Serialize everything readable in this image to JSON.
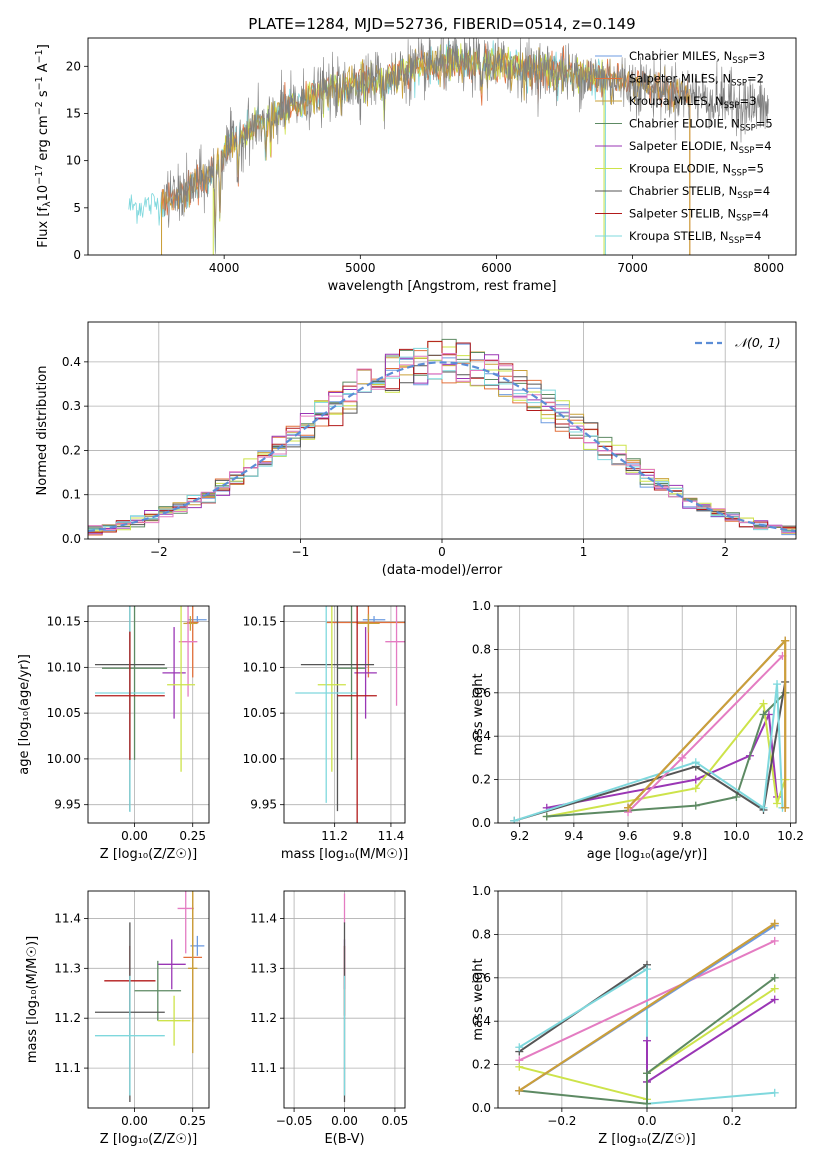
{
  "figure_title": "PLATE=1284, MJD=52736, FIBERID=0514, z=0.149",
  "colors": {
    "Chabrier MILES": "#6d9be0",
    "Salpeter MILES": "#e2703c",
    "Kroupa MILES": "#c9a13a",
    "Chabrier ELODIE": "#5d8a63",
    "Salpeter ELODIE": "#9a36b5",
    "Kroupa ELODIE": "#cde34a",
    "Chabrier STELIB": "#555555",
    "Salpeter STELIB": "#b21a1a",
    "Kroupa STELIB": "#7fd8dd",
    "Pink": "#e47cc2",
    "Data": "#808080",
    "Grid": "#b0b0b0",
    "Normal": "#5b8dd6"
  },
  "chart_data": [
    {
      "id": "spectrum",
      "type": "line",
      "title": "PLATE=1284, MJD=52736, FIBERID=0514, z=0.149",
      "xlabel": "wavelength [Angstrom, rest frame]",
      "ylabel_parts": [
        "Flux [f",
        "λ",
        "10",
        "−17",
        " erg cm",
        "−2",
        " s",
        "−1",
        " A",
        "−1",
        "]"
      ],
      "xlim": [
        3000,
        8200
      ],
      "ylim": [
        0,
        23
      ],
      "xticks": [
        4000,
        5000,
        6000,
        7000,
        8000
      ],
      "yticks": [
        0,
        5,
        10,
        15,
        20
      ],
      "grid": false,
      "legend_position": "upper right",
      "legend": [
        {
          "name": "Chabrier MILES",
          "nssp": "3",
          "color_key": "Chabrier MILES"
        },
        {
          "name": "Salpeter MILES",
          "nssp": "2",
          "color_key": "Salpeter MILES"
        },
        {
          "name": "Kroupa MILES",
          "nssp": "3",
          "color_key": "Kroupa MILES"
        },
        {
          "name": "Chabrier ELODIE",
          "nssp": "5",
          "color_key": "Chabrier ELODIE"
        },
        {
          "name": "Salpeter ELODIE",
          "nssp": "4",
          "color_key": "Salpeter ELODIE"
        },
        {
          "name": "Kroupa ELODIE",
          "nssp": "5",
          "color_key": "Kroupa ELODIE"
        },
        {
          "name": "Chabrier STELIB",
          "nssp": "4",
          "color_key": "Chabrier STELIB"
        },
        {
          "name": "Salpeter STELIB",
          "nssp": "4",
          "color_key": "Salpeter STELIB"
        },
        {
          "name": "Kroupa STELIB",
          "nssp": "4",
          "color_key": "Kroupa STELIB"
        }
      ],
      "continuum": [
        [
          3300,
          5.1
        ],
        [
          3500,
          5.4
        ],
        [
          3700,
          6.5
        ],
        [
          3900,
          8.5
        ],
        [
          4000,
          11
        ],
        [
          4200,
          13.5
        ],
        [
          4400,
          15
        ],
        [
          4600,
          16.5
        ],
        [
          4800,
          17.6
        ],
        [
          5000,
          18.3
        ],
        [
          5200,
          19
        ],
        [
          5400,
          19.8
        ],
        [
          5600,
          20.2
        ],
        [
          5800,
          20.3
        ],
        [
          6000,
          20.2
        ],
        [
          6200,
          19.8
        ],
        [
          6400,
          19.5
        ],
        [
          6600,
          19.1
        ],
        [
          6800,
          18.7
        ],
        [
          7000,
          18.2
        ],
        [
          7200,
          17.6
        ],
        [
          7400,
          17
        ],
        [
          7600,
          16.5
        ],
        [
          7800,
          16
        ],
        [
          8000,
          15.5
        ]
      ],
      "absorption_lines": [
        [
          3934,
          8
        ],
        [
          3969,
          7
        ],
        [
          4102,
          4
        ],
        [
          4304,
          3.5
        ],
        [
          4341,
          3
        ],
        [
          4861,
          2.5
        ],
        [
          5175,
          3.5
        ],
        [
          5270,
          2
        ],
        [
          5890,
          3
        ],
        [
          6563,
          1.5
        ],
        [
          7600,
          1.5
        ]
      ],
      "model_ranges": [
        {
          "color_key": "Kroupa STELIB",
          "x": [
            3300,
            6800
          ]
        },
        {
          "color_key": "Salpeter MILES",
          "x": [
            3540,
            7420
          ]
        },
        {
          "color_key": "Kroupa ELODIE",
          "x": [
            3920,
            6790
          ]
        },
        {
          "color_key": "Kroupa MILES",
          "x": [
            3540,
            7420
          ]
        }
      ],
      "data_range": [
        3560,
        8000
      ]
    },
    {
      "id": "residuals",
      "type": "step",
      "xlabel": "(data-model)/error",
      "ylabel": "Normed distribution",
      "xlim": [
        -2.5,
        2.5
      ],
      "ylim": [
        0,
        0.49
      ],
      "xticks": [
        -2,
        -1,
        0,
        1,
        2
      ],
      "xtick_labels": [
        "−2",
        "−1",
        "0",
        "1",
        "2"
      ],
      "yticks": [
        0,
        0.1,
        0.2,
        0.3,
        0.4
      ],
      "ytick_labels": [
        "0.0",
        "0.1",
        "0.2",
        "0.3",
        "0.4"
      ],
      "grid": true,
      "legend_position": "upper right",
      "legend_label": "𝒩(0, 1)",
      "normal": {
        "mean": 0,
        "sigma": 1
      },
      "bin_width": 0.1,
      "series_color_keys": [
        "Chabrier MILES",
        "Salpeter MILES",
        "Kroupa MILES",
        "Chabrier ELODIE",
        "Salpeter ELODIE",
        "Kroupa ELODIE",
        "Chabrier STELIB",
        "Salpeter STELIB",
        "Kroupa STELIB",
        "Pink"
      ]
    },
    {
      "id": "age-vs-Z",
      "type": "errorbar",
      "xlabel": "Z [log₁₀(Z/Z☉)]",
      "ylabel": "age  [log₁₀(age/yr)]",
      "xlim": [
        -0.2,
        0.32
      ],
      "ylim": [
        9.93,
        10.167
      ],
      "xticks": [
        0,
        0.25
      ],
      "xtick_labels": [
        "0.00",
        "0.25"
      ],
      "yticks": [
        9.95,
        10.0,
        10.05,
        10.1,
        10.15
      ],
      "ytick_labels": [
        "9.95",
        "10.00",
        "10.05",
        "10.10",
        "10.15"
      ],
      "grid": true,
      "points": [
        {
          "color_key": "Chabrier MILES",
          "x": 0.27,
          "y": 10.152,
          "xerr": 0.04,
          "yerr": 0.004
        },
        {
          "color_key": "Salpeter MILES",
          "x": 0.25,
          "y": 10.149,
          "xerr": 0.025,
          "yerr": 0.06
        },
        {
          "color_key": "Kroupa MILES",
          "x": 0.24,
          "y": 10.148,
          "xerr": 0.03,
          "yerr": 0.008
        },
        {
          "color_key": "Pink",
          "x": 0.23,
          "y": 10.128,
          "xerr": 0.04,
          "yerr": 0.06
        },
        {
          "color_key": "Salpeter ELODIE",
          "x": 0.17,
          "y": 10.094,
          "xerr": 0.05,
          "yerr": 0.05
        },
        {
          "color_key": "Chabrier ELODIE",
          "x": 0.0,
          "y": 10.099,
          "xerr": 0.14,
          "yerr": 0.1
        },
        {
          "color_key": "Chabrier STELIB",
          "x": -0.02,
          "y": 10.103,
          "xerr": 0.15,
          "yerr": 0.16
        },
        {
          "color_key": "Kroupa ELODIE",
          "x": 0.2,
          "y": 10.081,
          "xerr": 0.06,
          "yerr": 0.095
        },
        {
          "color_key": "Kroupa STELIB",
          "x": -0.02,
          "y": 10.072,
          "xerr": 0.15,
          "yerr": 0.13
        },
        {
          "color_key": "Salpeter STELIB",
          "x": -0.02,
          "y": 10.069,
          "xerr": 0.15,
          "yerr": 0.07
        }
      ]
    },
    {
      "id": "age-vs-mass",
      "type": "errorbar",
      "xlabel": "mass [log₁₀(M/M☉)]",
      "ylabel": "",
      "xlim": [
        11.02,
        11.45
      ],
      "ylim": [
        9.93,
        10.167
      ],
      "xticks": [
        11.2,
        11.4
      ],
      "xtick_labels": [
        "11.2",
        "11.4"
      ],
      "yticks": [
        9.95,
        10.0,
        10.05,
        10.1,
        10.15
      ],
      "ytick_labels": [
        "9.95",
        "10.00",
        "10.05",
        "10.10",
        "10.15"
      ],
      "grid": true,
      "points": [
        {
          "color_key": "Chabrier MILES",
          "x": 11.34,
          "y": 10.152,
          "xerr": 0.04,
          "yerr": 0.004
        },
        {
          "color_key": "Salpeter MILES",
          "x": 11.32,
          "y": 10.149,
          "xerr": 0.15,
          "yerr": 0.06
        },
        {
          "color_key": "Kroupa MILES",
          "x": 11.32,
          "y": 10.148,
          "xerr": 0.04,
          "yerr": 0.01
        },
        {
          "color_key": "Pink",
          "x": 11.42,
          "y": 10.128,
          "xerr": 0.04,
          "yerr": 0.07
        },
        {
          "color_key": "Salpeter ELODIE",
          "x": 11.31,
          "y": 10.094,
          "xerr": 0.04,
          "yerr": 0.05
        },
        {
          "color_key": "Chabrier ELODIE",
          "x": 11.26,
          "y": 10.099,
          "xerr": 0.05,
          "yerr": 0.1
        },
        {
          "color_key": "Chabrier STELIB",
          "x": 11.21,
          "y": 10.103,
          "xerr": 0.13,
          "yerr": 0.16
        },
        {
          "color_key": "Kroupa ELODIE",
          "x": 11.19,
          "y": 10.081,
          "xerr": 0.05,
          "yerr": 0.095
        },
        {
          "color_key": "Kroupa STELIB",
          "x": 11.17,
          "y": 10.072,
          "xerr": 0.11,
          "yerr": 0.12
        },
        {
          "color_key": "Salpeter STELIB",
          "x": 11.28,
          "y": 10.069,
          "xerr": 0.07,
          "yerr": 0.14
        }
      ]
    },
    {
      "id": "weight-vs-age",
      "type": "line",
      "xlabel": "age  [log₁₀(age/yr)]",
      "ylabel": "mass weight",
      "xlim": [
        9.12,
        10.22
      ],
      "ylim": [
        0,
        1
      ],
      "xticks": [
        9.2,
        9.4,
        9.6,
        9.8,
        10.0,
        10.2
      ],
      "xtick_labels": [
        "9.2",
        "9.4",
        "9.6",
        "9.8",
        "10.0",
        "10.2"
      ],
      "yticks": [
        0,
        0.2,
        0.4,
        0.6,
        0.8,
        1.0
      ],
      "ytick_labels": [
        "0.0",
        "0.2",
        "0.4",
        "0.6",
        "0.8",
        "1.0"
      ],
      "grid": true,
      "series": [
        {
          "color_key": "Salpeter ELODIE",
          "x": [
            9.3,
            9.85,
            10.05,
            10.12,
            10.15
          ],
          "y": [
            0.07,
            0.2,
            0.31,
            0.5,
            0.12
          ]
        },
        {
          "color_key": "Kroupa ELODIE",
          "x": [
            9.3,
            9.85,
            10.1,
            10.15,
            10.18
          ],
          "y": [
            0.03,
            0.16,
            0.55,
            0.09,
            0.2
          ]
        },
        {
          "color_key": "Chabrier ELODIE",
          "x": [
            9.3,
            9.85,
            10.0,
            10.1,
            10.18
          ],
          "y": [
            0.03,
            0.08,
            0.12,
            0.5,
            0.6
          ]
        },
        {
          "color_key": "Chabrier STELIB",
          "x": [
            9.18,
            9.85,
            10.1,
            10.18
          ],
          "y": [
            0.01,
            0.26,
            0.06,
            0.65
          ]
        },
        {
          "color_key": "Pink",
          "x": [
            9.6,
            9.8,
            10.17
          ],
          "y": [
            0.05,
            0.3,
            0.77
          ]
        },
        {
          "color_key": "Kroupa STELIB",
          "x": [
            9.18,
            9.85,
            10.1,
            10.15,
            10.17
          ],
          "y": [
            0.01,
            0.28,
            0.07,
            0.64,
            0.07
          ]
        },
        {
          "color_key": "Chabrier MILES",
          "x": [
            9.6,
            10.18
          ],
          "y": [
            0.07,
            0.84
          ]
        },
        {
          "color_key": "Salpeter MILES",
          "x": [
            9.6,
            10.18,
            10.18
          ],
          "y": [
            0.07,
            0.84,
            0.07
          ]
        },
        {
          "color_key": "Kroupa MILES",
          "x": [
            9.6,
            10.18,
            10.18
          ],
          "y": [
            0.07,
            0.84,
            0.07
          ]
        }
      ]
    },
    {
      "id": "mass-vs-Z",
      "type": "errorbar",
      "xlabel": "Z [log₁₀(Z/Z☉)]",
      "ylabel": "mass [log₁₀(M/M☉)]",
      "xlim": [
        -0.2,
        0.32
      ],
      "ylim": [
        11.02,
        11.455
      ],
      "xticks": [
        0,
        0.25
      ],
      "xtick_labels": [
        "0.00",
        "0.25"
      ],
      "yticks": [
        11.1,
        11.2,
        11.3,
        11.4
      ],
      "ytick_labels": [
        "11.1",
        "11.2",
        "11.3",
        "11.4"
      ],
      "grid": true,
      "points": [
        {
          "color_key": "Pink",
          "x": 0.22,
          "y": 11.42,
          "xerr": 0.035,
          "yerr": 0.09
        },
        {
          "color_key": "Chabrier MILES",
          "x": 0.27,
          "y": 11.345,
          "xerr": 0.03,
          "yerr": 0.02
        },
        {
          "color_key": "Salpeter MILES",
          "x": 0.25,
          "y": 11.322,
          "xerr": 0.04,
          "yerr": 0.13
        },
        {
          "color_key": "Kroupa MILES",
          "x": 0.25,
          "y": 11.3,
          "xerr": 0.02,
          "yerr": 0.17
        },
        {
          "color_key": "Salpeter ELODIE",
          "x": 0.16,
          "y": 11.308,
          "xerr": 0.06,
          "yerr": 0.05
        },
        {
          "color_key": "Salpeter STELIB",
          "x": -0.02,
          "y": 11.275,
          "xerr": 0.11,
          "yerr": 0.07
        },
        {
          "color_key": "Chabrier ELODIE",
          "x": 0.1,
          "y": 11.255,
          "xerr": 0.1,
          "yerr": 0.06
        },
        {
          "color_key": "Chabrier STELIB",
          "x": -0.02,
          "y": 11.212,
          "xerr": 0.15,
          "yerr": 0.18
        },
        {
          "color_key": "Kroupa ELODIE",
          "x": 0.17,
          "y": 11.195,
          "xerr": 0.07,
          "yerr": 0.05
        },
        {
          "color_key": "Kroupa STELIB",
          "x": -0.02,
          "y": 11.165,
          "xerr": 0.15,
          "yerr": 0.12
        }
      ]
    },
    {
      "id": "mass-vs-EBV",
      "type": "errorbar",
      "xlabel": "E(B-V)",
      "ylabel": "",
      "xlim": [
        -0.06,
        0.06
      ],
      "ylim": [
        11.02,
        11.455
      ],
      "xticks": [
        -0.05,
        0,
        0.05
      ],
      "xtick_labels": [
        "−0.05",
        "0.00",
        "0.05"
      ],
      "yticks": [
        11.1,
        11.2,
        11.3,
        11.4
      ],
      "ytick_labels": [
        "11.1",
        "11.2",
        "11.3",
        "11.4"
      ],
      "grid": true,
      "points": [
        {
          "color_key": "Pink",
          "x": 0.0,
          "y": 11.42,
          "xerr": 0.0,
          "yerr": 0.03
        },
        {
          "color_key": "Salpeter ELODIE",
          "x": 0.0,
          "y": 11.308,
          "xerr": 0.0,
          "yerr": 0.05
        },
        {
          "color_key": "Salpeter STELIB",
          "x": 0.0,
          "y": 11.275,
          "xerr": 0.0,
          "yerr": 0.07
        },
        {
          "color_key": "Chabrier STELIB",
          "x": 0.0,
          "y": 11.212,
          "xerr": 0.0,
          "yerr": 0.18
        },
        {
          "color_key": "Kroupa STELIB",
          "x": 0.0,
          "y": 11.165,
          "xerr": 0.0,
          "yerr": 0.12
        }
      ]
    },
    {
      "id": "weight-vs-Z",
      "type": "line",
      "xlabel": "Z [log₁₀(Z/Z☉)]",
      "ylabel": "mass weight",
      "xlim": [
        -0.35,
        0.35
      ],
      "ylim": [
        0,
        1
      ],
      "xticks": [
        -0.2,
        0,
        0.2
      ],
      "xtick_labels": [
        "−0.2",
        "0.0",
        "0.2"
      ],
      "yticks": [
        0,
        0.2,
        0.4,
        0.6,
        0.8,
        1.0
      ],
      "ytick_labels": [
        "0.0",
        "0.2",
        "0.4",
        "0.6",
        "0.8",
        "1.0"
      ],
      "grid": true,
      "series": [
        {
          "color_key": "Chabrier STELIB",
          "x": [
            -0.3,
            0.0,
            0.0
          ],
          "y": [
            0.26,
            0.66,
            0.12
          ]
        },
        {
          "color_key": "Kroupa STELIB",
          "x": [
            -0.3,
            0.0,
            0.0,
            0.3
          ],
          "y": [
            0.28,
            0.64,
            0.02,
            0.07
          ]
        },
        {
          "color_key": "Pink",
          "x": [
            -0.3,
            0.3
          ],
          "y": [
            0.22,
            0.77
          ]
        },
        {
          "color_key": "Kroupa ELODIE",
          "x": [
            -0.3,
            0.0,
            0.0,
            0.3
          ],
          "y": [
            0.19,
            0.04,
            0.16,
            0.55
          ]
        },
        {
          "color_key": "Salpeter ELODIE",
          "x": [
            0.0,
            0.0,
            0.3
          ],
          "y": [
            0.31,
            0.12,
            0.5
          ]
        },
        {
          "color_key": "Chabrier ELODIE",
          "x": [
            -0.3,
            0.0,
            0.0,
            0.3
          ],
          "y": [
            0.08,
            0.02,
            0.16,
            0.6
          ]
        },
        {
          "color_key": "Chabrier MILES",
          "x": [
            -0.3,
            0.3
          ],
          "y": [
            0.08,
            0.84
          ]
        },
        {
          "color_key": "Salpeter MILES",
          "x": [
            -0.3,
            0.3
          ],
          "y": [
            0.08,
            0.85
          ]
        },
        {
          "color_key": "Kroupa MILES",
          "x": [
            -0.3,
            0.3
          ],
          "y": [
            0.08,
            0.85
          ]
        }
      ]
    }
  ]
}
